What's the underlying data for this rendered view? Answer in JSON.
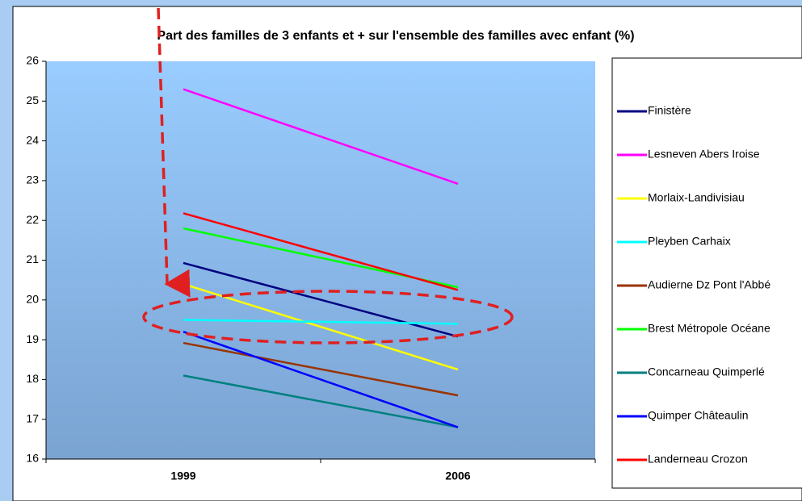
{
  "chart_data": {
    "type": "line",
    "title": "Part des familles de 3 enfants et + sur l'ensemble des familles avec enfant (%)",
    "categories": [
      "1999",
      "2006"
    ],
    "series": [
      {
        "name": "Finistère",
        "color": "#000080",
        "values": [
          20.93,
          19.08
        ]
      },
      {
        "name": "Lesneven Abers Iroise",
        "color": "#ff00ff",
        "values": [
          25.3,
          22.92
        ]
      },
      {
        "name": "Morlaix-Landivisiau",
        "color": "#ffff00",
        "values": [
          20.4,
          18.25
        ]
      },
      {
        "name": "Pleyben Carhaix",
        "color": "#00ffff",
        "values": [
          19.5,
          19.4
        ]
      },
      {
        "name": "Audierne Dz Pont l'Abbé",
        "color": "#993300",
        "values": [
          18.92,
          17.6
        ]
      },
      {
        "name": "Brest Métropole Océane",
        "color": "#00ff00",
        "values": [
          21.8,
          20.32
        ]
      },
      {
        "name": "Concarneau Quimperlé",
        "color": "#008080",
        "values": [
          18.1,
          16.8
        ]
      },
      {
        "name": "Quimper Châteaulin",
        "color": "#0000ff",
        "values": [
          19.2,
          16.8
        ]
      },
      {
        "name": "Landerneau Crozon",
        "color": "#ff0000",
        "values": [
          22.18,
          20.25
        ]
      }
    ],
    "ylim": [
      16,
      26
    ],
    "yticks": [
      16,
      17,
      18,
      19,
      20,
      21,
      22,
      23,
      24,
      25,
      26
    ],
    "grid": false
  }
}
